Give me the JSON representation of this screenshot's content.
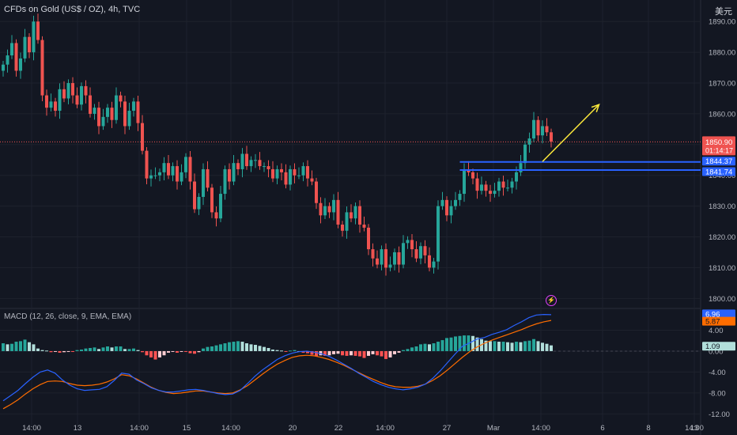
{
  "header": {
    "title": "CFDs on Gold (US$ / OZ), 4h, TVC",
    "currency": "美元"
  },
  "chart_data": [
    {
      "type": "candlestick",
      "symbol": "CFDs on Gold (US$ / OZ)",
      "interval": "4h",
      "ylim": [
        1797,
        1897
      ],
      "y_ticks": [
        1800,
        1810,
        1820,
        1830,
        1840,
        1850,
        1860,
        1870,
        1880,
        1890
      ],
      "y_tick_labels": [
        "1800.00",
        "1810.00",
        "1820.00",
        "1830.00",
        "1840.00",
        "1850.00",
        "1860.00",
        "1870.00",
        "1880.00",
        "1890.00"
      ],
      "x_tick_labels": [
        "14:00",
        "13",
        "14:00",
        "15",
        "14:00",
        "20",
        "22",
        "14:00",
        "27",
        "Mar",
        "14:00",
        "6",
        "8",
        "14:00",
        "13"
      ],
      "closes": [
        1876,
        1879,
        1883,
        1874,
        1878,
        1885,
        1880,
        1890,
        1884,
        1866,
        1862,
        1864,
        1861,
        1868,
        1865,
        1870,
        1866,
        1863,
        1869,
        1866,
        1860,
        1862,
        1856,
        1859,
        1862,
        1858,
        1866,
        1864,
        1856,
        1861,
        1864,
        1857,
        1848,
        1839,
        1840,
        1840,
        1841,
        1844,
        1840,
        1843,
        1838,
        1841,
        1846,
        1838,
        1829,
        1833,
        1842,
        1836,
        1828,
        1826,
        1834,
        1842,
        1838,
        1844,
        1842,
        1847,
        1843,
        1845,
        1845,
        1843,
        1843,
        1842,
        1839,
        1842,
        1841,
        1837,
        1842,
        1840,
        1840,
        1843,
        1839,
        1838,
        1831,
        1827,
        1830,
        1828,
        1832,
        1824,
        1822,
        1828,
        1826,
        1830,
        1824,
        1823,
        1816,
        1813,
        1811,
        1816,
        1810,
        1811,
        1815,
        1811,
        1818,
        1819,
        1816,
        1813,
        1817,
        1814,
        1810,
        1812,
        1830,
        1832,
        1827,
        1830,
        1832,
        1834,
        1842,
        1841,
        1839,
        1835,
        1837,
        1835,
        1834,
        1835,
        1838,
        1836,
        1836,
        1838,
        1841,
        1844,
        1850,
        1852,
        1858,
        1853,
        1856,
        1854,
        1851
      ],
      "last_price": "1850.90",
      "countdown": "01:14:17",
      "levels": [
        {
          "price": 1844.37,
          "label": "1844.37"
        },
        {
          "price": 1841.74,
          "label": "1841.74"
        }
      ],
      "last_price_dotted_line": 1850.9,
      "annotation": {
        "type": "arrow",
        "color": "#ffeb3b",
        "from": [
          124,
          1844.5
        ],
        "to": [
          137,
          1863
        ]
      },
      "colors": {
        "up": "#26a69a",
        "down": "#ef5350",
        "level": "#2962ff",
        "arrow": "#ffeb3b"
      }
    },
    {
      "type": "bar",
      "name": "MACD (12, 26, close, 9, EMA, EMA)",
      "ylim": [
        -13,
        8
      ],
      "y_ticks": [
        4,
        0,
        -4,
        -8,
        -12
      ],
      "y_tick_labels": [
        "4.00",
        "0.00",
        "-4.00",
        "-8.00",
        "-12.00"
      ],
      "histogram": [
        1.5,
        1.3,
        1.4,
        1.8,
        1.9,
        2.2,
        1.7,
        1.3,
        0.5,
        0.2,
        0.1,
        -0.2,
        -0.1,
        -0.3,
        -0.2,
        -0.1,
        -0.1,
        0.2,
        0.3,
        0.5,
        0.6,
        0.7,
        0.4,
        0.7,
        0.9,
        0.7,
        0.9,
        0.9,
        0.4,
        0.4,
        0.5,
        0.2,
        -0.2,
        -0.8,
        -1.2,
        -1.6,
        -1.2,
        -0.8,
        -0.3,
        -0.1,
        -0.3,
        -0.1,
        -0.1,
        -0.4,
        -0.5,
        -0.2,
        0.5,
        0.8,
        0.9,
        1.1,
        1.3,
        1.5,
        1.7,
        1.8,
        1.9,
        1.8,
        1.5,
        1.3,
        1.2,
        1.0,
        0.8,
        0.6,
        0.3,
        0.2,
        0.1,
        -0.1,
        0.1,
        0.2,
        0.0,
        -0.3,
        -0.4,
        -0.7,
        -1.0,
        -0.8,
        -0.9,
        -0.8,
        -0.6,
        -0.5,
        -0.8,
        -0.9,
        -0.8,
        -0.9,
        -1.0,
        -1.3,
        -0.9,
        -0.6,
        -0.8,
        -1.0,
        -1.5,
        -1.2,
        -0.6,
        -0.3,
        0.2,
        0.4,
        0.7,
        0.9,
        1.3,
        1.4,
        1.3,
        1.5,
        1.8,
        2.1,
        2.5,
        2.6,
        2.8,
        2.9,
        3.0,
        3.0,
        2.9,
        2.6,
        2.3,
        2.0,
        1.9,
        1.9,
        1.8,
        1.8,
        1.7,
        1.6,
        1.8,
        1.7,
        1.9,
        2.0,
        2.3,
        1.9,
        1.6,
        1.4,
        1.1
      ],
      "macd_line": [
        -9.5,
        -8.5,
        -7.5,
        -6.2,
        -5.0,
        -4.0,
        -3.6,
        -4.2,
        -5.5,
        -6.5,
        -7.2,
        -7.5,
        -7.4,
        -7.3,
        -6.8,
        -5.6,
        -4.2,
        -4.4,
        -5.5,
        -6.2,
        -7.0,
        -7.5,
        -7.8,
        -7.8,
        -7.6,
        -7.4,
        -7.3,
        -7.5,
        -7.8,
        -8.1,
        -8.3,
        -8.2,
        -7.5,
        -6.2,
        -4.8,
        -3.6,
        -2.6,
        -1.6,
        -0.9,
        -0.4,
        -0.1,
        0.0,
        -0.2,
        -0.5,
        -1.0,
        -1.7,
        -2.5,
        -3.3,
        -4.2,
        -5.0,
        -5.8,
        -6.4,
        -6.9,
        -7.2,
        -7.4,
        -7.2,
        -6.9,
        -6.3,
        -5.2,
        -3.8,
        -2.2,
        -0.6,
        0.9,
        1.6,
        2.3,
        2.6,
        3.2,
        3.6,
        4.1,
        4.9,
        5.6,
        6.4,
        6.9,
        7.0,
        6.96
      ],
      "signal_line": [
        -11.0,
        -10.2,
        -9.3,
        -8.2,
        -7.2,
        -6.4,
        -5.8,
        -5.7,
        -5.8,
        -6.2,
        -6.5,
        -6.6,
        -6.5,
        -6.3,
        -5.9,
        -5.3,
        -4.5,
        -4.7,
        -5.3,
        -6.1,
        -6.9,
        -7.5,
        -7.9,
        -8.1,
        -8.0,
        -7.8,
        -7.6,
        -7.6,
        -7.8,
        -8.0,
        -8.1,
        -8.0,
        -7.4,
        -6.6,
        -5.5,
        -4.4,
        -3.4,
        -2.5,
        -1.8,
        -1.2,
        -0.9,
        -0.8,
        -0.9,
        -1.2,
        -1.6,
        -2.1,
        -2.7,
        -3.4,
        -4.1,
        -4.8,
        -5.4,
        -6.0,
        -6.5,
        -6.8,
        -6.9,
        -6.9,
        -6.7,
        -6.3,
        -5.6,
        -4.7,
        -3.6,
        -2.4,
        -1.2,
        -0.1,
        0.8,
        1.5,
        2.1,
        2.6,
        3.1,
        3.6,
        4.1,
        4.7,
        5.2,
        5.6,
        5.87
      ],
      "macd_value": "6.96",
      "signal_value": "5.87",
      "hist_value": "1.09",
      "colors": {
        "macd": "#2962ff",
        "signal": "#ff6d00",
        "hist_up_strong": "#26a69a",
        "hist_up_weak": "#b2dfdb",
        "hist_down_strong": "#ff5252",
        "hist_down_weak": "#ffcdd2"
      }
    }
  ]
}
